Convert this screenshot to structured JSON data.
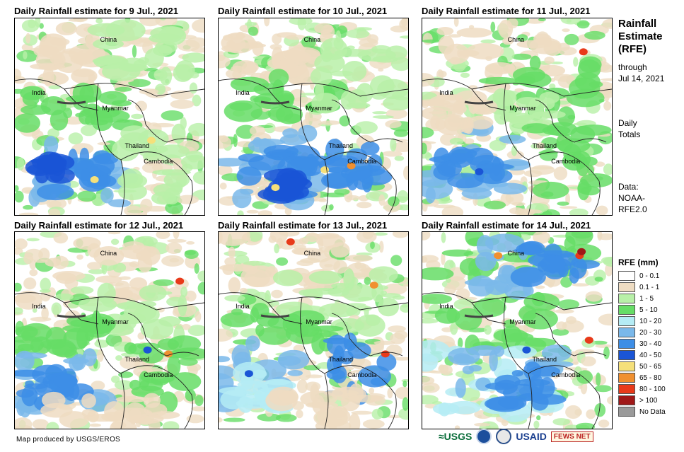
{
  "panels": [
    {
      "title": "Daily Rainfall estimate for 9 Jul., 2021",
      "labels": {
        "china": "China",
        "india": "India",
        "myanmar": "Myanmar",
        "thailand": "Thailand",
        "cambodia": "Cambodia"
      }
    },
    {
      "title": "Daily Rainfall estimate for 10 Jul., 2021",
      "labels": {
        "china": "China",
        "india": "India",
        "myanmar": "Myanmar",
        "thailand": "Thailand",
        "cambodia": "Cambodia"
      }
    },
    {
      "title": "Daily Rainfall estimate for 11 Jul., 2021",
      "labels": {
        "china": "China",
        "india": "India",
        "myanmar": "Myanmar",
        "thailand": "Thailand",
        "cambodia": "Cambodia"
      }
    },
    {
      "title": "Daily Rainfall estimate for 12 Jul., 2021",
      "labels": {
        "china": "China",
        "india": "India",
        "myanmar": "Myanmar",
        "thailand": "Thailand",
        "cambodia": "Cambodia"
      }
    },
    {
      "title": "Daily Rainfall estimate for 13 Jul., 2021",
      "labels": {
        "china": "China",
        "india": "India",
        "myanmar": "Myanmar",
        "thailand": "Thailand",
        "cambodia": "Cambodia"
      }
    },
    {
      "title": "Daily Rainfall estimate for 14 Jul., 2021",
      "labels": {
        "china": "China",
        "india": "India",
        "myanmar": "Myanmar",
        "thailand": "Thailand",
        "cambodia": "Cambodia"
      }
    }
  ],
  "sidebar": {
    "title_line1": "Rainfall",
    "title_line2": "Estimate",
    "title_line3": "(RFE)",
    "through": "through",
    "date": "Jul 14, 2021",
    "daily": "Daily",
    "totals": "Totals",
    "data_label": "Data:",
    "data_source1": "NOAA-",
    "data_source2": "RFE2.0"
  },
  "legend": {
    "title": "RFE (mm)",
    "items": [
      {
        "label": "0 - 0.1",
        "color": "#ffffff"
      },
      {
        "label": "0.1 - 1",
        "color": "#eedcc2"
      },
      {
        "label": "1 - 5",
        "color": "#b8f0a8"
      },
      {
        "label": "5 - 10",
        "color": "#66dd66"
      },
      {
        "label": "10 - 20",
        "color": "#b5ecf5"
      },
      {
        "label": "20 - 30",
        "color": "#7ab8ea"
      },
      {
        "label": "30 - 40",
        "color": "#3d8ee6"
      },
      {
        "label": "40 - 50",
        "color": "#1a55d6"
      },
      {
        "label": "50 - 65",
        "color": "#f5e07a"
      },
      {
        "label": "65 - 80",
        "color": "#f09030"
      },
      {
        "label": "80 - 100",
        "color": "#e83a1a"
      },
      {
        "label": "> 100",
        "color": "#a01818"
      },
      {
        "label": "No Data",
        "color": "#9a9a9a"
      }
    ]
  },
  "credit": "Map produced by USGS/EROS",
  "logos": {
    "usgs": "≈USGS",
    "usaid": "USAID",
    "fews": "FEWS NET"
  }
}
